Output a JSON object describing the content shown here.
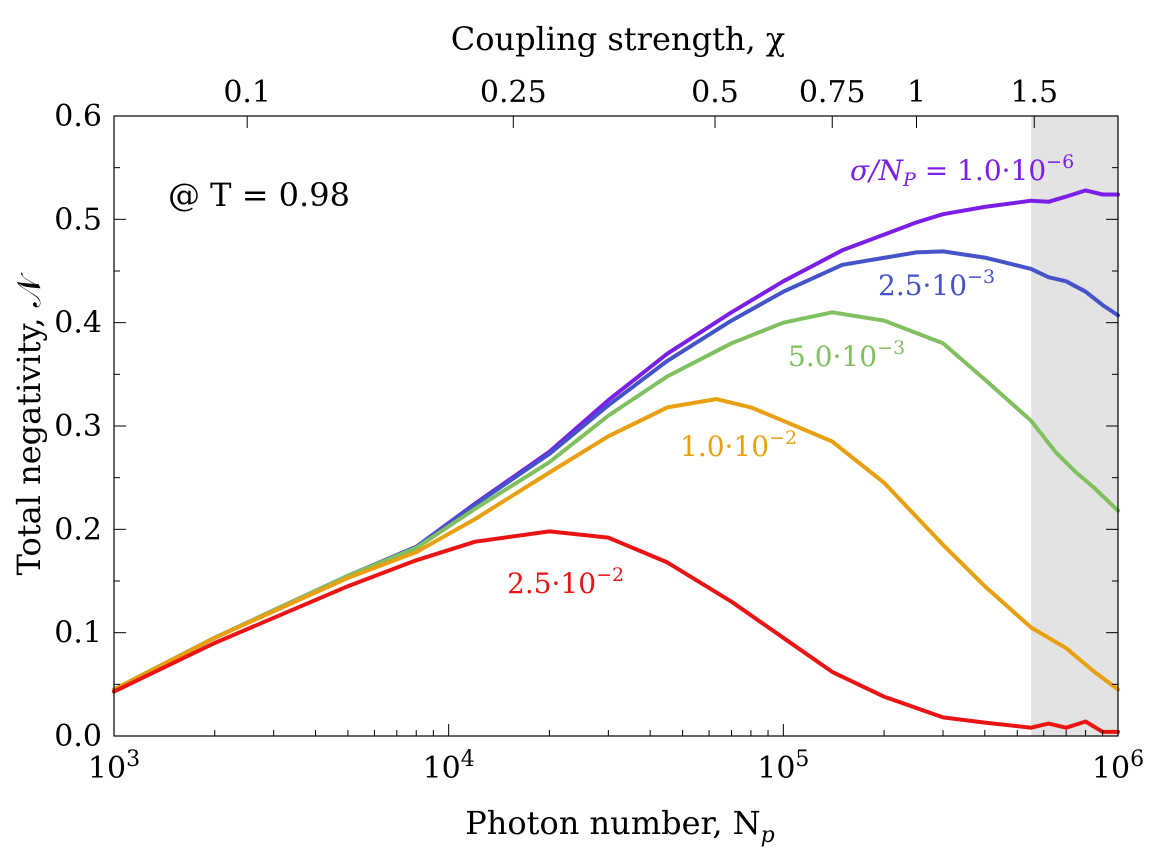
{
  "chart_data": {
    "type": "line",
    "xscale": "log",
    "xlim": [
      1000,
      1000000
    ],
    "ylim": [
      0,
      0.6
    ],
    "xlabel": "Photon number,  N",
    "xlabel_sub": "p",
    "ylabel": "Total negativity,  𝒩",
    "top_axis": {
      "label": "Coupling strength, χ",
      "ticks": [
        {
          "label": "0.1",
          "at_Np": 2500
        },
        {
          "label": "0.25",
          "at_Np": 15600
        },
        {
          "label": "0.5",
          "at_Np": 62500
        },
        {
          "label": "0.75",
          "at_Np": 140000
        },
        {
          "label": "1",
          "at_Np": 250000
        },
        {
          "label": "1.5",
          "at_Np": 562000
        }
      ]
    },
    "x_ticks": [
      {
        "base": "10",
        "exp": "3",
        "value": 1000
      },
      {
        "base": "10",
        "exp": "4",
        "value": 10000
      },
      {
        "base": "10",
        "exp": "5",
        "value": 100000
      },
      {
        "base": "10",
        "exp": "6",
        "value": 1000000
      }
    ],
    "y_ticks": [
      "0.0",
      "0.1",
      "0.2",
      "0.3",
      "0.4",
      "0.5",
      "0.6"
    ],
    "annotation": "@ T = 0.98",
    "shaded_region": {
      "x_from": 550000,
      "x_to": 1000000,
      "color": "#e3e3e3"
    },
    "grid": false,
    "series": [
      {
        "name": "σ/N_P = 1.0·10^{-6}",
        "label_prefix": "σ/N",
        "label_sub": "P",
        "label_mid": " = 1.0·10",
        "label_sup": "−6",
        "color": "#7b1ee6",
        "x": [
          1000,
          2000,
          5000,
          8000,
          12000,
          20000,
          30000,
          45000,
          70000,
          100000,
          150000,
          250000,
          300000,
          400000,
          550000,
          620000,
          700000,
          800000,
          900000,
          1000000
        ],
        "y": [
          0.045,
          0.095,
          0.155,
          0.183,
          0.225,
          0.275,
          0.325,
          0.37,
          0.41,
          0.44,
          0.47,
          0.497,
          0.505,
          0.512,
          0.518,
          0.517,
          0.522,
          0.528,
          0.524,
          0.524
        ]
      },
      {
        "name": "2.5·10^{-3}",
        "label_mid": "2.5·10",
        "label_sup": "−3",
        "color": "#4453c8",
        "x": [
          1000,
          2000,
          5000,
          8000,
          12000,
          20000,
          30000,
          45000,
          70000,
          100000,
          150000,
          250000,
          300000,
          400000,
          550000,
          620000,
          700000,
          800000,
          900000,
          1000000
        ],
        "y": [
          0.045,
          0.095,
          0.155,
          0.183,
          0.224,
          0.273,
          0.32,
          0.363,
          0.402,
          0.43,
          0.456,
          0.468,
          0.469,
          0.463,
          0.452,
          0.444,
          0.44,
          0.43,
          0.417,
          0.407
        ]
      },
      {
        "name": "5.0·10^{-3}",
        "label_mid": "5.0·10",
        "label_sup": "−3",
        "color": "#80c060",
        "x": [
          1000,
          2000,
          5000,
          8000,
          12000,
          20000,
          30000,
          45000,
          70000,
          100000,
          140000,
          200000,
          300000,
          400000,
          550000,
          650000,
          750000,
          850000,
          1000000
        ],
        "y": [
          0.045,
          0.095,
          0.155,
          0.182,
          0.22,
          0.265,
          0.31,
          0.348,
          0.38,
          0.4,
          0.41,
          0.402,
          0.38,
          0.345,
          0.305,
          0.275,
          0.255,
          0.24,
          0.218
        ]
      },
      {
        "name": "1.0·10^{-2}",
        "label_mid": "1.0·10",
        "label_sup": "−2",
        "color": "#e8a011",
        "x": [
          1000,
          2000,
          5000,
          8000,
          12000,
          20000,
          30000,
          45000,
          63000,
          80000,
          100000,
          140000,
          200000,
          300000,
          400000,
          550000,
          700000,
          850000,
          1000000
        ],
        "y": [
          0.045,
          0.095,
          0.153,
          0.178,
          0.21,
          0.255,
          0.29,
          0.318,
          0.326,
          0.318,
          0.305,
          0.285,
          0.245,
          0.185,
          0.145,
          0.105,
          0.085,
          0.062,
          0.045
        ]
      },
      {
        "name": "2.5·10^{-2}",
        "label_mid": "2.5·10",
        "label_sup": "−2",
        "color": "#ea1414",
        "x": [
          1000,
          2000,
          5000,
          8000,
          12000,
          20000,
          30000,
          45000,
          70000,
          100000,
          140000,
          200000,
          300000,
          400000,
          550000,
          620000,
          700000,
          800000,
          900000,
          1000000
        ],
        "y": [
          0.043,
          0.09,
          0.145,
          0.17,
          0.188,
          0.198,
          0.192,
          0.168,
          0.13,
          0.095,
          0.062,
          0.038,
          0.018,
          0.013,
          0.008,
          0.012,
          0.008,
          0.014,
          0.004,
          0.004
        ]
      }
    ]
  }
}
